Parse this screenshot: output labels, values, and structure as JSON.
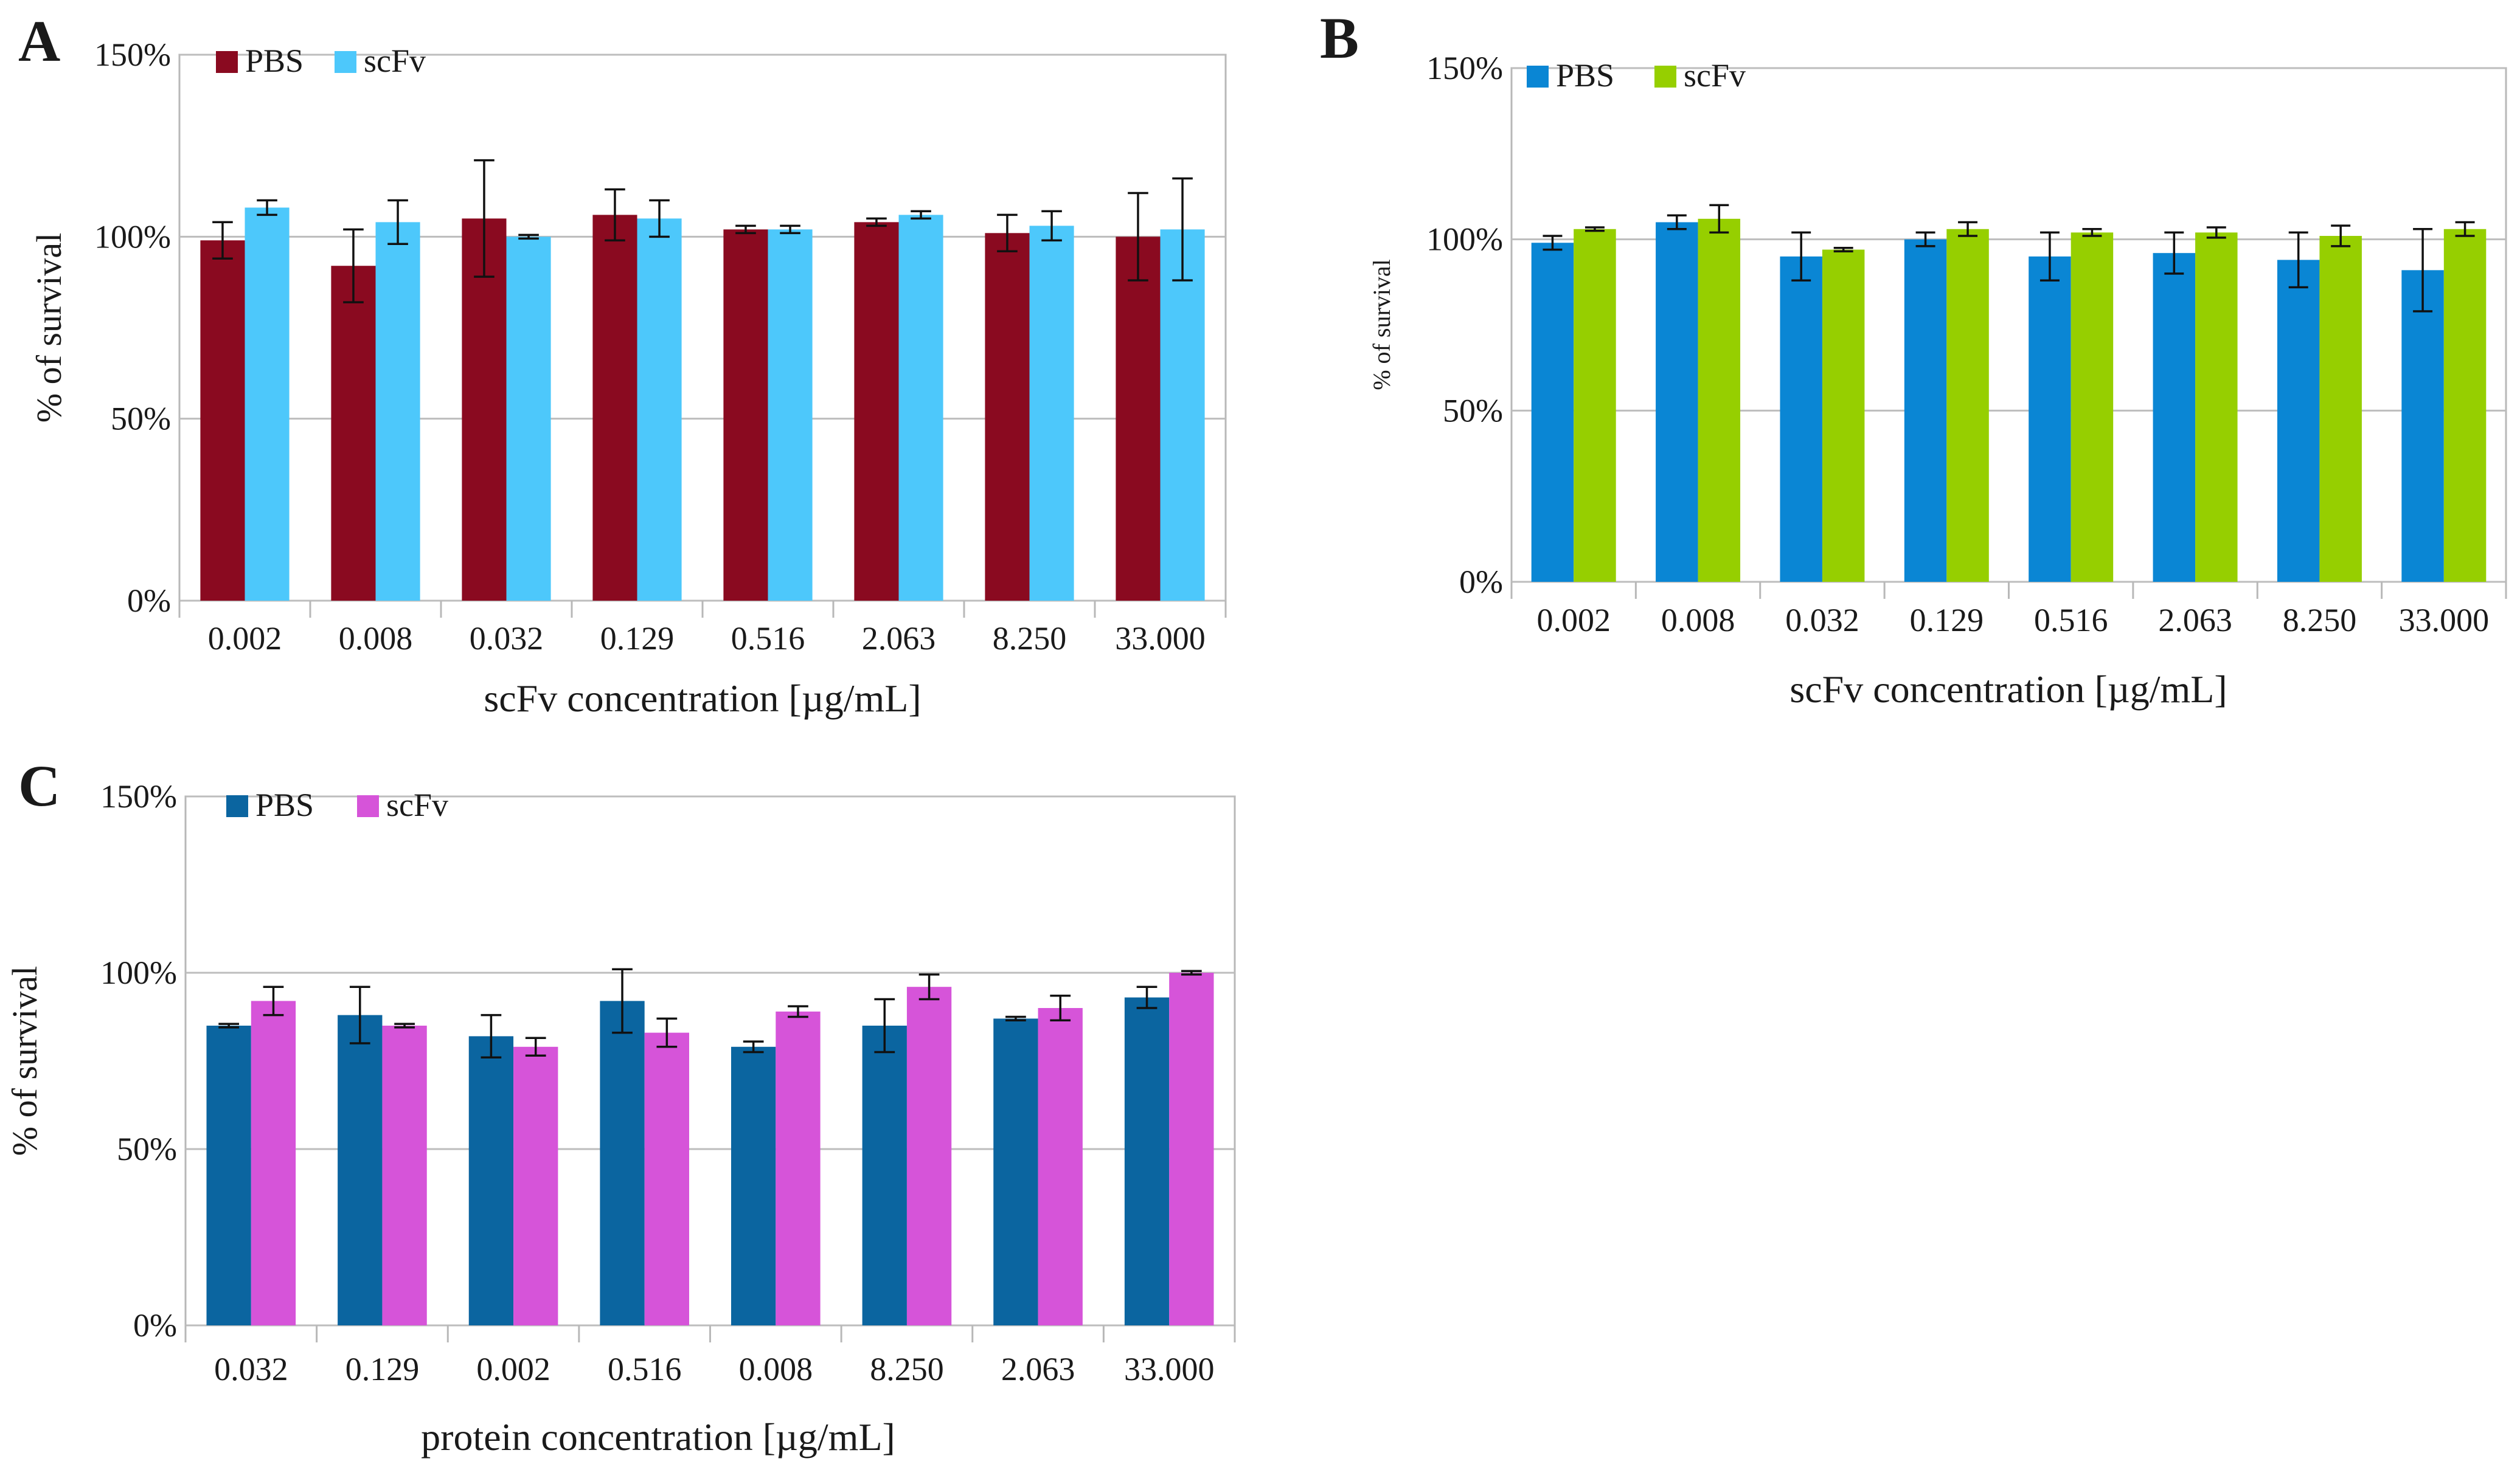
{
  "chart_data": [
    {
      "panel": "A",
      "type": "bar",
      "title": "",
      "xlabel": "scFv concentration [µg/mL]",
      "ylabel": "% of survival",
      "ylim": [
        0,
        150
      ],
      "yticks": [
        0,
        50,
        100,
        150
      ],
      "ytick_labels": [
        "0%",
        "50%",
        "100%",
        "150%"
      ],
      "grid": true,
      "legend_position": "top-left",
      "categories": [
        "0.002",
        "0.008",
        "0.032",
        "0.129",
        "0.516",
        "2.063",
        "8.250",
        "33.000"
      ],
      "series": [
        {
          "name": "PBS",
          "color": "#8a0a20",
          "values": [
            99,
            92,
            105,
            106,
            102,
            104,
            101,
            100
          ],
          "errors": [
            5,
            10,
            16,
            7,
            1,
            1,
            5,
            12
          ]
        },
        {
          "name": "scFv",
          "color": "#4dc8fb",
          "values": [
            108,
            104,
            100,
            105,
            102,
            106,
            103,
            102
          ],
          "errors": [
            2,
            6,
            0.5,
            5,
            1,
            1,
            4,
            14
          ]
        }
      ]
    },
    {
      "panel": "B",
      "type": "bar",
      "title": "",
      "xlabel": "scFv concentration [µg/mL]",
      "ylabel": "% of survival",
      "ylim": [
        0,
        150
      ],
      "yticks": [
        0,
        50,
        100,
        150
      ],
      "ytick_labels": [
        "0%",
        "50%",
        "100%",
        "150%"
      ],
      "grid": true,
      "legend_position": "top-left",
      "categories": [
        "0.002",
        "0.008",
        "0.032",
        "0.129",
        "0.516",
        "2.063",
        "8.250",
        "33.000"
      ],
      "series": [
        {
          "name": "PBS",
          "color": "#0a86d4",
          "values": [
            99,
            105,
            95,
            100,
            95,
            96,
            94,
            91
          ],
          "errors": [
            2,
            2,
            7,
            2,
            7,
            6,
            8,
            12
          ]
        },
        {
          "name": "scFv",
          "color": "#96cf00",
          "values": [
            103,
            106,
            97,
            103,
            102,
            102,
            101,
            103
          ],
          "errors": [
            0.5,
            4,
            0.5,
            2,
            1,
            1.5,
            3,
            2
          ]
        }
      ]
    },
    {
      "panel": "C",
      "type": "bar",
      "title": "",
      "xlabel": "protein concentration [µg/mL]",
      "ylabel": "% of survival",
      "ylim": [
        0,
        150
      ],
      "yticks": [
        0,
        50,
        100,
        150
      ],
      "ytick_labels": [
        "0%",
        "50%",
        "100%",
        "150%"
      ],
      "grid": true,
      "legend_position": "top-left",
      "categories": [
        "0.032",
        "0.129",
        "0.002",
        "0.516",
        "0.008",
        "8.250",
        "2.063",
        "33.000"
      ],
      "series": [
        {
          "name": "PBS",
          "color": "#0b65a0",
          "values": [
            85,
            88,
            82,
            92,
            79,
            85,
            87,
            93
          ],
          "errors": [
            0.5,
            8,
            6,
            9,
            1.5,
            7.5,
            0.5,
            3
          ]
        },
        {
          "name": "scFv",
          "color": "#d654d9",
          "values": [
            92,
            85,
            79,
            83,
            89,
            96,
            90,
            100
          ],
          "errors": [
            4,
            0.5,
            2.5,
            4,
            1.5,
            3.5,
            3.5,
            0.5
          ]
        }
      ]
    }
  ]
}
